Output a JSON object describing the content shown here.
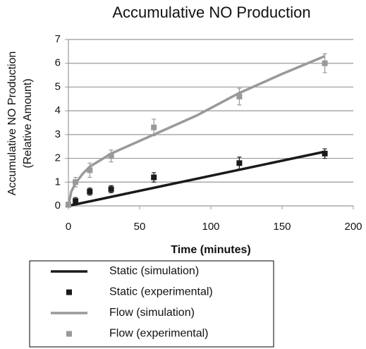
{
  "chart_data": {
    "type": "line",
    "title": "Accumulative NO Production",
    "y_label": [
      "Accumulative NO Production",
      "(Relative Amount)"
    ],
    "x_label": "Time (minutes)",
    "xlim": [
      0,
      200
    ],
    "xticks": [
      0,
      50,
      100,
      150,
      200
    ],
    "ylim": [
      0,
      7
    ],
    "yticks": [
      0,
      1,
      2,
      3,
      4,
      5,
      6,
      7
    ],
    "grid": true,
    "series": [
      {
        "name": "Static (simulation)",
        "color": "#1a1a1a",
        "style": "line",
        "x": [
          0,
          180
        ],
        "values": [
          0,
          2.28
        ]
      },
      {
        "name": "Static (experimental)",
        "color": "#1a1a1a",
        "style": "scatter",
        "x": [
          0,
          5,
          15,
          30,
          60,
          120,
          180
        ],
        "values": [
          0.05,
          0.2,
          0.6,
          0.7,
          1.2,
          1.8,
          2.2
        ],
        "errors": [
          0.05,
          0.15,
          0.15,
          0.15,
          0.2,
          0.25,
          0.2
        ]
      },
      {
        "name": "Flow (simulation)",
        "color": "#999999",
        "style": "line",
        "x": [
          0,
          2,
          5,
          10,
          15,
          30,
          60,
          90,
          120,
          150,
          180
        ],
        "values": [
          0,
          0.6,
          0.95,
          1.35,
          1.65,
          2.2,
          3.0,
          3.8,
          4.75,
          5.55,
          6.3
        ]
      },
      {
        "name": "Flow (experimental)",
        "color": "#999999",
        "style": "scatter",
        "x": [
          0,
          5,
          15,
          30,
          60,
          120,
          180
        ],
        "values": [
          0.05,
          1.0,
          1.5,
          2.1,
          3.3,
          4.6,
          6.0
        ],
        "errors": [
          0.05,
          0.2,
          0.3,
          0.25,
          0.35,
          0.35,
          0.4
        ]
      }
    ]
  }
}
